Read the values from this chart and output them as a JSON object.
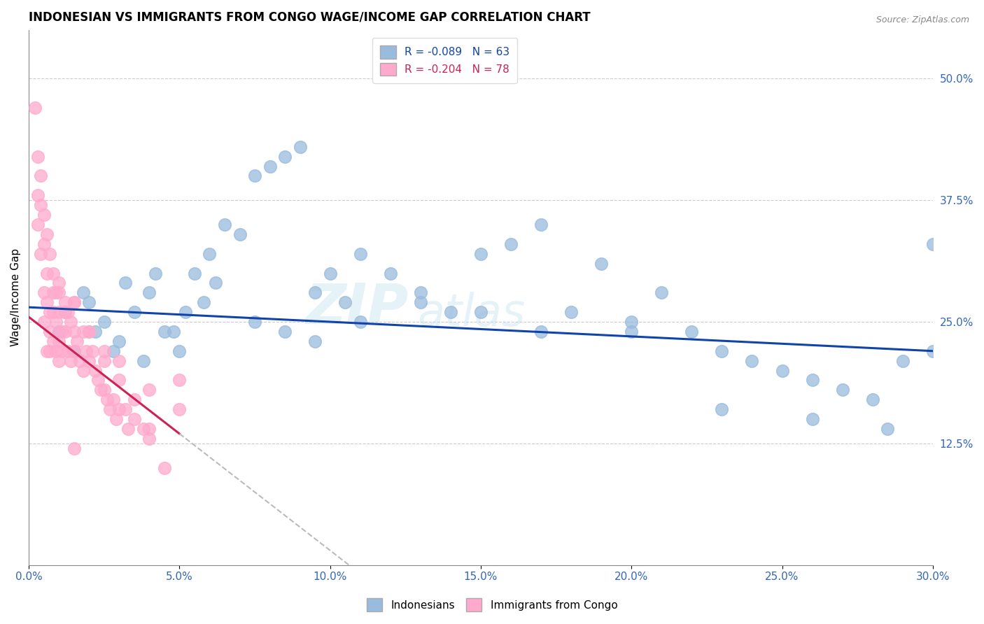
{
  "title": "INDONESIAN VS IMMIGRANTS FROM CONGO WAGE/INCOME GAP CORRELATION CHART",
  "source": "Source: ZipAtlas.com",
  "xlabel_ticks": [
    "0.0%",
    "5.0%",
    "10.0%",
    "15.0%",
    "20.0%",
    "25.0%",
    "30.0%"
  ],
  "xlabel_vals": [
    0.0,
    5.0,
    10.0,
    15.0,
    20.0,
    25.0,
    30.0
  ],
  "ylabel": "Wage/Income Gap",
  "ylabel_ticks_right": [
    "12.5%",
    "25.0%",
    "37.5%",
    "50.0%"
  ],
  "ylabel_vals_right": [
    12.5,
    25.0,
    37.5,
    50.0
  ],
  "ylim": [
    0,
    55
  ],
  "xlim": [
    0,
    30
  ],
  "blue_R": -0.089,
  "blue_N": 63,
  "pink_R": -0.204,
  "pink_N": 78,
  "blue_color": "#99BBDD",
  "pink_color": "#FFAACC",
  "blue_line_color": "#1144AA",
  "pink_line_color": "#CC2255",
  "watermark": "ZIPatlas",
  "legend_label_blue": "Indonesians",
  "legend_label_pink": "Immigrants from Congo",
  "blue_line_x0": 0.0,
  "blue_line_y0": 26.5,
  "blue_line_x1": 30.0,
  "blue_line_y1": 22.0,
  "pink_line_x0": 0.0,
  "pink_line_y0": 25.5,
  "pink_line_x1": 5.0,
  "pink_line_y1": 13.5,
  "pink_dash_x0": 5.0,
  "pink_dash_x1": 30.0,
  "blue_x": [
    1.0,
    1.5,
    2.0,
    2.5,
    3.0,
    3.5,
    4.0,
    4.5,
    5.0,
    5.5,
    6.0,
    6.5,
    7.0,
    7.5,
    8.0,
    8.5,
    9.0,
    9.5,
    10.0,
    10.5,
    11.0,
    12.0,
    13.0,
    14.0,
    15.0,
    16.0,
    17.0,
    18.0,
    19.0,
    20.0,
    21.0,
    22.0,
    23.0,
    24.0,
    25.0,
    26.0,
    27.0,
    28.0,
    29.0,
    30.0,
    1.2,
    1.8,
    2.2,
    2.8,
    3.2,
    3.8,
    4.2,
    4.8,
    5.2,
    5.8,
    6.2,
    7.5,
    8.5,
    9.5,
    11.0,
    13.0,
    15.0,
    17.0,
    20.0,
    23.0,
    26.0,
    28.5,
    30.0
  ],
  "blue_y": [
    24.0,
    22.0,
    27.0,
    25.0,
    23.0,
    26.0,
    28.0,
    24.0,
    22.0,
    30.0,
    32.0,
    35.0,
    34.0,
    40.0,
    41.0,
    42.0,
    43.0,
    28.0,
    30.0,
    27.0,
    32.0,
    30.0,
    28.0,
    26.0,
    32.0,
    33.0,
    35.0,
    26.0,
    31.0,
    25.0,
    28.0,
    24.0,
    22.0,
    21.0,
    20.0,
    19.0,
    18.0,
    17.0,
    21.0,
    22.0,
    26.0,
    28.0,
    24.0,
    22.0,
    29.0,
    21.0,
    30.0,
    24.0,
    26.0,
    27.0,
    29.0,
    25.0,
    24.0,
    23.0,
    25.0,
    27.0,
    26.0,
    24.0,
    24.0,
    16.0,
    15.0,
    14.0,
    33.0
  ],
  "pink_x": [
    0.2,
    0.3,
    0.3,
    0.4,
    0.4,
    0.5,
    0.5,
    0.5,
    0.6,
    0.6,
    0.6,
    0.7,
    0.7,
    0.7,
    0.8,
    0.8,
    0.8,
    0.9,
    0.9,
    1.0,
    1.0,
    1.0,
    1.0,
    1.1,
    1.1,
    1.2,
    1.2,
    1.3,
    1.3,
    1.4,
    1.4,
    1.5,
    1.5,
    1.5,
    1.6,
    1.7,
    1.8,
    1.8,
    1.9,
    2.0,
    2.0,
    2.1,
    2.2,
    2.3,
    2.4,
    2.5,
    2.5,
    2.6,
    2.7,
    2.8,
    2.9,
    3.0,
    3.0,
    3.2,
    3.3,
    3.5,
    3.5,
    3.8,
    4.0,
    4.0,
    4.5,
    5.0,
    0.3,
    0.4,
    0.5,
    0.6,
    0.7,
    0.8,
    0.9,
    1.0,
    1.2,
    1.5,
    2.0,
    2.5,
    3.0,
    4.0,
    5.0,
    1.5
  ],
  "pink_y": [
    47.0,
    38.0,
    35.0,
    37.0,
    32.0,
    28.0,
    25.0,
    33.0,
    30.0,
    27.0,
    22.0,
    26.0,
    24.0,
    22.0,
    28.0,
    26.0,
    23.0,
    25.0,
    22.0,
    28.0,
    26.0,
    23.0,
    21.0,
    24.0,
    22.0,
    27.0,
    24.0,
    26.0,
    22.0,
    25.0,
    21.0,
    27.0,
    24.0,
    22.0,
    23.0,
    21.0,
    24.0,
    20.0,
    22.0,
    24.0,
    21.0,
    22.0,
    20.0,
    19.0,
    18.0,
    21.0,
    18.0,
    17.0,
    16.0,
    17.0,
    15.0,
    19.0,
    16.0,
    16.0,
    14.0,
    17.0,
    15.0,
    14.0,
    14.0,
    13.0,
    10.0,
    19.0,
    42.0,
    40.0,
    36.0,
    34.0,
    32.0,
    30.0,
    28.0,
    29.0,
    26.0,
    27.0,
    24.0,
    22.0,
    21.0,
    18.0,
    16.0,
    12.0
  ]
}
